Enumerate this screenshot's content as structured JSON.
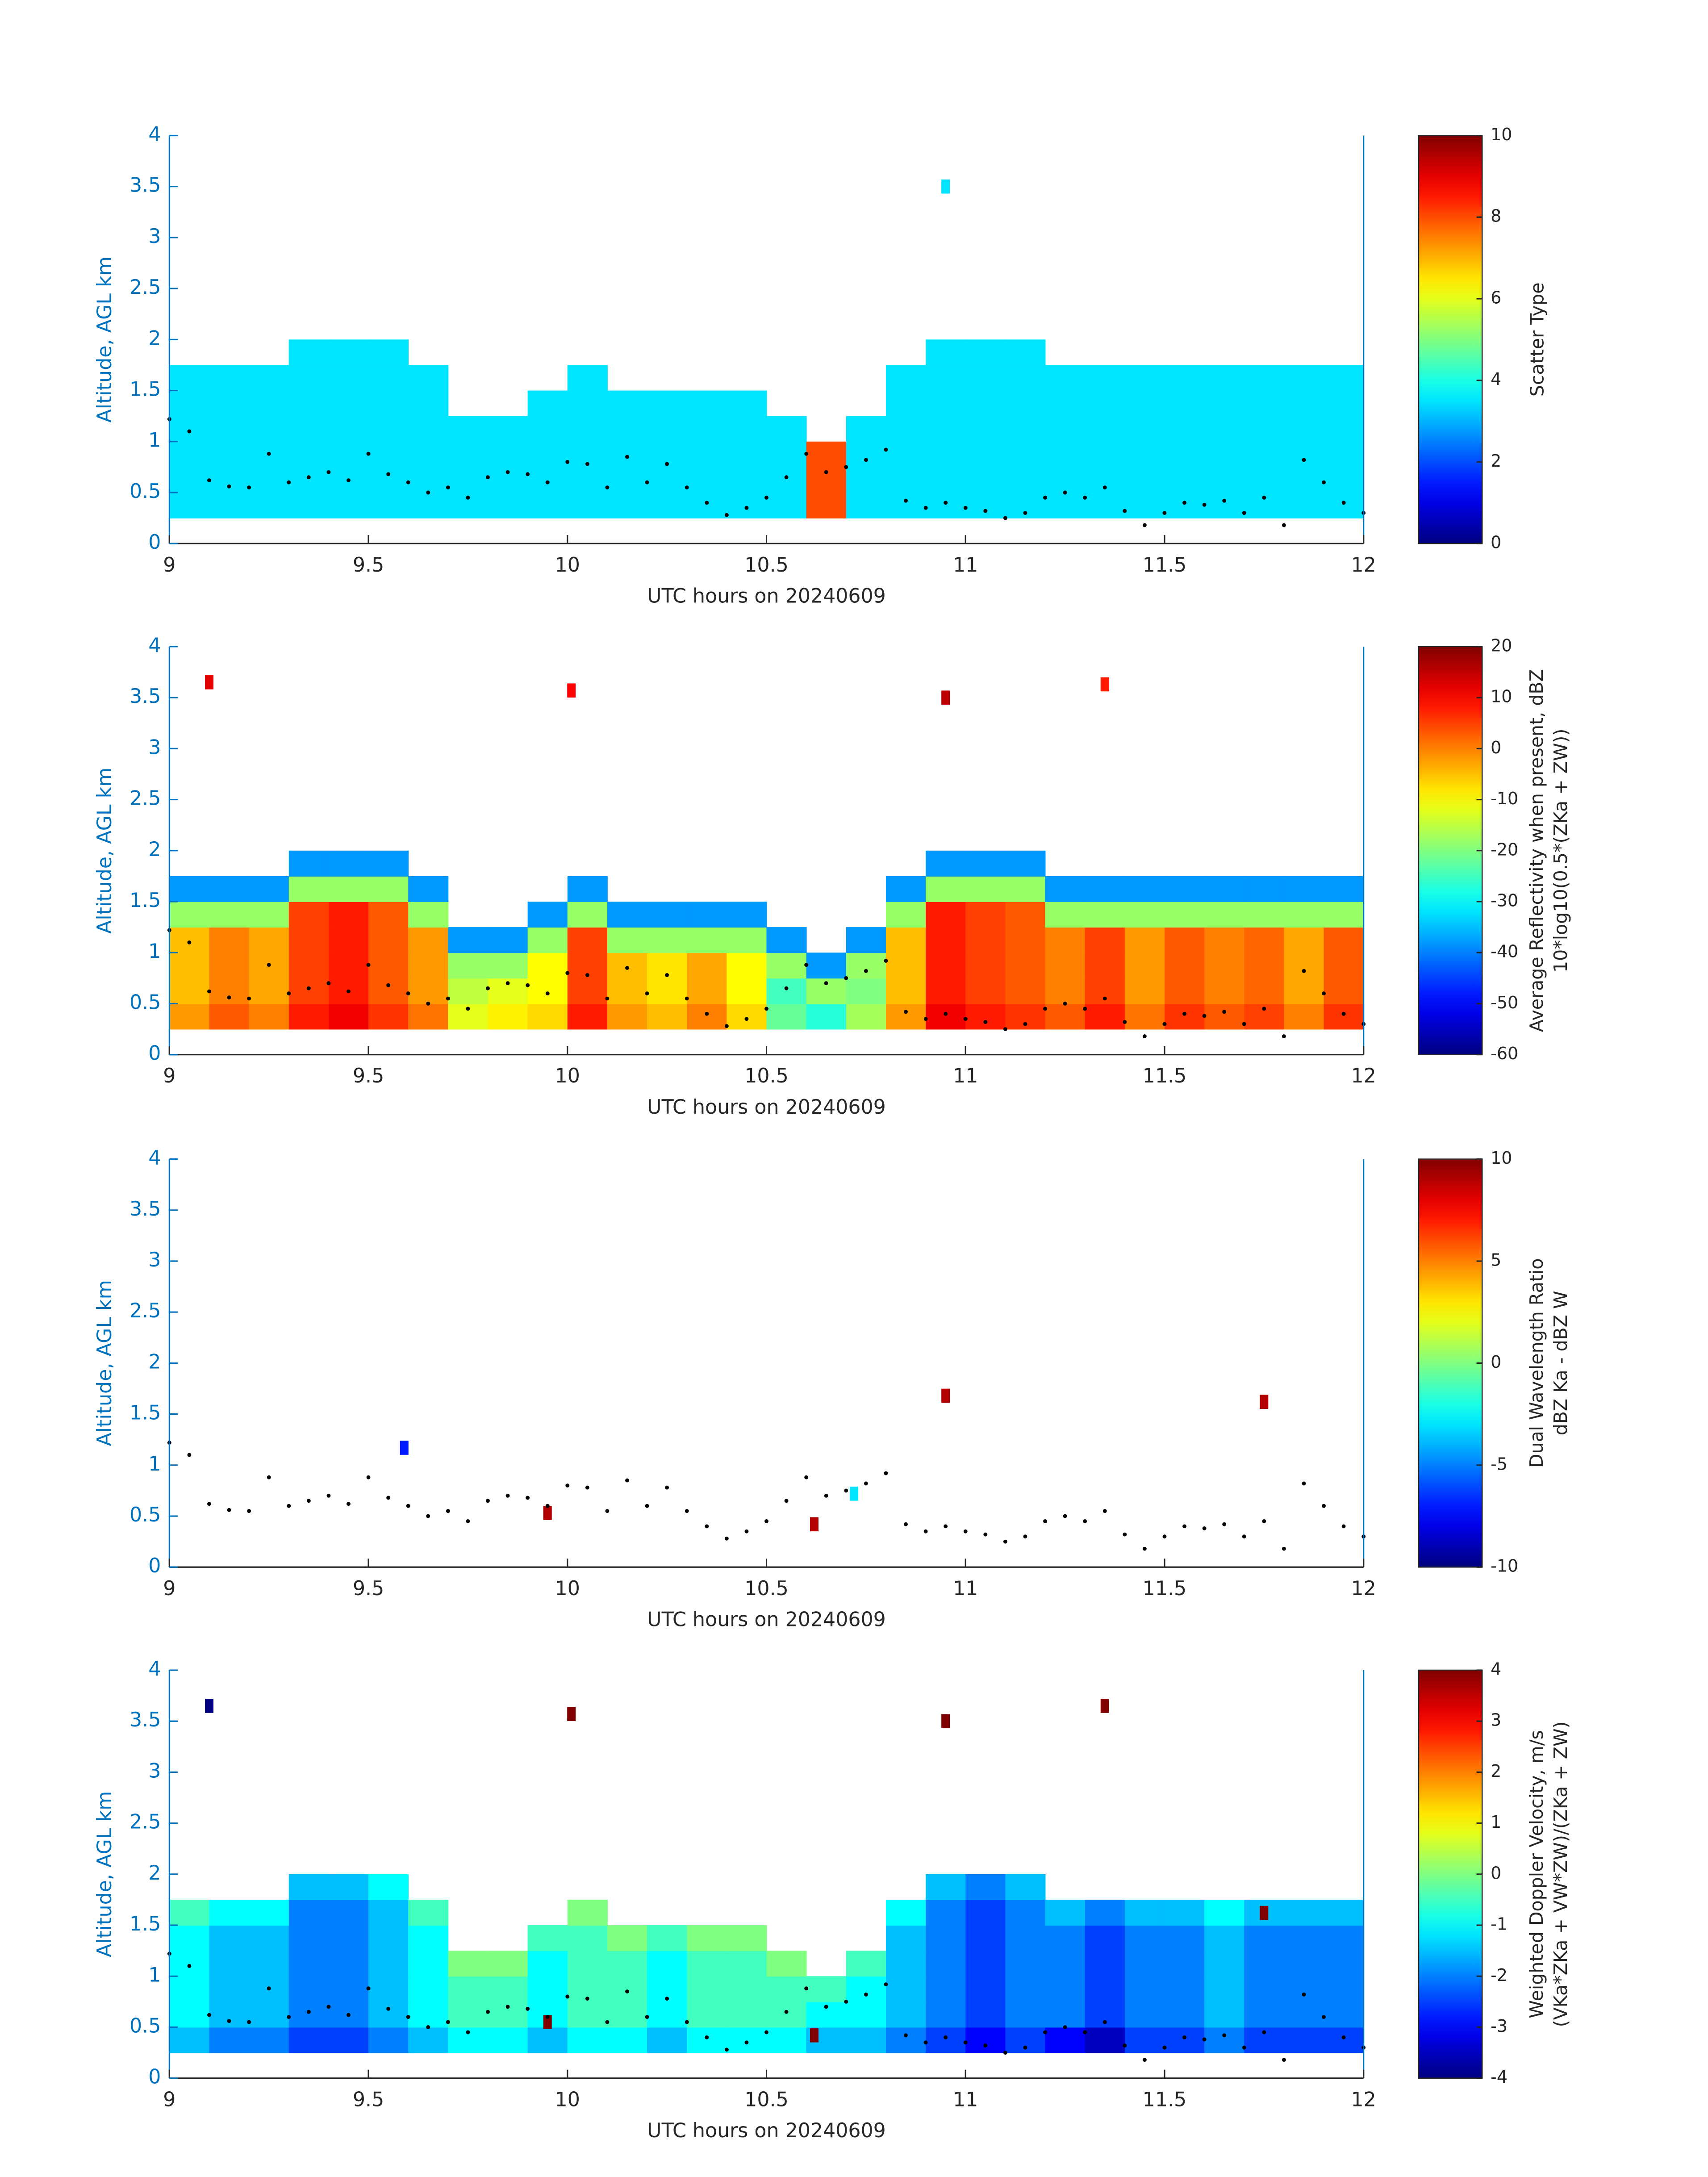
{
  "chart_data": [
    {
      "type": "heatmap",
      "xlabel": "UTC hours on 20240609",
      "ylabel": "Altitude, AGL km",
      "clabel": [
        "Scatter Type"
      ],
      "xlim": [
        9,
        12
      ],
      "ylim": [
        0,
        4
      ],
      "xticks": [
        9,
        9.5,
        10,
        10.5,
        11,
        11.5,
        12
      ],
      "yticks": [
        0,
        0.5,
        1,
        1.5,
        2,
        2.5,
        3,
        3.5,
        4
      ],
      "clim": [
        0,
        10
      ],
      "cticks": [
        0,
        2,
        4,
        6,
        8,
        10
      ],
      "x": [
        9.05,
        9.15,
        9.25,
        9.35,
        9.45,
        9.55,
        9.65,
        9.75,
        9.85,
        9.95,
        10.05,
        10.15,
        10.25,
        10.35,
        10.45,
        10.55,
        10.65,
        10.75,
        10.85,
        10.95,
        11.05,
        11.15,
        11.25,
        11.35,
        11.45,
        11.55,
        11.65,
        11.75,
        11.85,
        11.95
      ],
      "y": [
        0.375,
        0.625,
        0.875,
        1.125,
        1.375,
        1.625,
        1.875
      ],
      "z": [
        [
          3.5,
          3.5,
          3.5,
          3.5,
          3.5,
          3.5,
          3.5,
          3.5,
          3.5,
          3.5,
          3.5,
          3.5,
          3.5,
          3.5,
          3.5,
          3.5,
          8,
          3.5,
          3.5,
          3.5,
          3.5,
          3.5,
          3.5,
          3.5,
          3.5,
          3.5,
          3.5,
          3.5,
          3.5,
          3.5
        ],
        [
          3.5,
          3.5,
          3.5,
          3.5,
          3.5,
          3.5,
          3.5,
          3.5,
          3.5,
          3.5,
          3.5,
          3.5,
          3.5,
          3.5,
          3.5,
          3.5,
          8,
          3.5,
          3.5,
          3.5,
          3.5,
          3.5,
          3.5,
          3.5,
          3.5,
          3.5,
          3.5,
          3.5,
          3.5,
          3.5
        ],
        [
          3.5,
          3.5,
          3.5,
          3.5,
          3.5,
          3.5,
          3.5,
          3.5,
          3.5,
          3.5,
          3.5,
          3.5,
          3.5,
          3.5,
          3.5,
          3.5,
          8,
          3.5,
          3.5,
          3.5,
          3.5,
          3.5,
          3.5,
          3.5,
          3.5,
          3.5,
          3.5,
          3.5,
          3.5,
          3.5
        ],
        [
          3.5,
          3.5,
          3.5,
          3.5,
          3.5,
          3.5,
          3.5,
          3.5,
          3.5,
          3.5,
          3.5,
          3.5,
          3.5,
          3.5,
          3.5,
          3.5,
          null,
          3.5,
          3.5,
          3.5,
          3.5,
          3.5,
          3.5,
          3.5,
          3.5,
          3.5,
          3.5,
          3.5,
          3.5,
          3.5
        ],
        [
          3.5,
          3.5,
          3.5,
          3.5,
          3.5,
          3.5,
          3.5,
          null,
          null,
          3.5,
          3.5,
          3.5,
          3.5,
          3.5,
          3.5,
          null,
          null,
          null,
          3.5,
          3.5,
          3.5,
          3.5,
          3.5,
          3.5,
          3.5,
          3.5,
          3.5,
          3.5,
          3.5,
          3.5
        ],
        [
          3.5,
          3.5,
          3.5,
          3.5,
          3.5,
          3.5,
          3.5,
          null,
          null,
          null,
          3.5,
          null,
          null,
          null,
          null,
          null,
          null,
          null,
          3.5,
          3.5,
          3.5,
          3.5,
          3.5,
          3.5,
          3.5,
          3.5,
          3.5,
          3.5,
          3.5,
          3.5
        ],
        [
          null,
          null,
          null,
          3.5,
          3.5,
          3.5,
          null,
          null,
          null,
          null,
          null,
          null,
          null,
          null,
          null,
          null,
          null,
          null,
          null,
          3.5,
          3.5,
          3.5,
          null,
          null,
          null,
          null,
          null,
          null,
          null,
          null
        ]
      ],
      "cells": {
        "x": [
          10.95
        ],
        "y": [
          3.5
        ],
        "values": [
          3.5
        ]
      },
      "dots": {
        "x": [
          9,
          9.05,
          9.1,
          9.15,
          9.2,
          9.25,
          9.3,
          9.35,
          9.4,
          9.45,
          9.5,
          9.55,
          9.6,
          9.65,
          9.7,
          9.75,
          9.8,
          9.85,
          9.9,
          9.95,
          10,
          10.05,
          10.1,
          10.15,
          10.2,
          10.25,
          10.3,
          10.35,
          10.4,
          10.45,
          10.5,
          10.55,
          10.6,
          10.65,
          10.7,
          10.75,
          10.8,
          10.85,
          10.9,
          10.95,
          11,
          11.05,
          11.1,
          11.15,
          11.2,
          11.25,
          11.3,
          11.35,
          11.4,
          11.45,
          11.5,
          11.55,
          11.6,
          11.65,
          11.7,
          11.75,
          11.8,
          11.85,
          11.9,
          11.95,
          12
        ],
        "y": [
          1.22,
          1.1,
          0.62,
          0.56,
          0.55,
          0.88,
          0.6,
          0.65,
          0.7,
          0.62,
          0.88,
          0.68,
          0.6,
          0.5,
          0.55,
          0.45,
          0.65,
          0.7,
          0.68,
          0.6,
          0.8,
          0.78,
          0.55,
          0.85,
          0.6,
          0.78,
          0.55,
          0.4,
          0.28,
          0.35,
          0.45,
          0.65,
          0.88,
          0.7,
          0.75,
          0.82,
          0.92,
          0.42,
          0.35,
          0.4,
          0.35,
          0.32,
          0.25,
          0.3,
          0.45,
          0.5,
          0.45,
          0.55,
          0.32,
          0.18,
          0.3,
          0.4,
          0.38,
          0.42,
          0.3,
          0.45,
          0.18,
          0.82,
          0.6,
          0.4,
          0.3
        ]
      }
    },
    {
      "type": "heatmap",
      "xlabel": "UTC hours on 20240609",
      "ylabel": "Altitude, AGL km",
      "clabel": [
        "Average Reflectivity when present, dBZ",
        "10*log10(0.5*(ZKa + ZW))"
      ],
      "xlim": [
        9,
        12
      ],
      "ylim": [
        0,
        4
      ],
      "xticks": [
        9,
        9.5,
        10,
        10.5,
        11,
        11.5,
        12
      ],
      "yticks": [
        0,
        0.5,
        1,
        1.5,
        2,
        2.5,
        3,
        3.5,
        4
      ],
      "clim": [
        -60,
        20
      ],
      "cticks": [
        -60,
        -50,
        -40,
        -30,
        -20,
        -10,
        0,
        10,
        20
      ],
      "x": [
        9.05,
        9.15,
        9.25,
        9.35,
        9.45,
        9.55,
        9.65,
        9.75,
        9.85,
        9.95,
        10.05,
        10.15,
        10.25,
        10.35,
        10.45,
        10.55,
        10.65,
        10.75,
        10.85,
        10.95,
        11.05,
        11.15,
        11.25,
        11.35,
        11.45,
        11.55,
        11.65,
        11.75,
        11.85,
        11.95
      ],
      "y": [
        0.375,
        0.625,
        0.875,
        1.125,
        1.375,
        1.625,
        1.875
      ],
      "z": [
        [
          -2,
          3,
          0,
          8,
          11,
          6,
          1,
          -12,
          -9,
          -7,
          8,
          -2,
          -5,
          0,
          -7,
          -22,
          -27,
          -17,
          -2,
          11,
          8,
          6,
          3,
          8,
          1,
          6,
          3,
          5,
          0,
          6
        ],
        [
          -5,
          0,
          -3,
          5,
          8,
          3,
          -2,
          -15,
          -12,
          -10,
          5,
          -5,
          -8,
          -3,
          -10,
          -25,
          -18,
          -20,
          -5,
          8,
          5,
          3,
          0,
          5,
          -2,
          3,
          0,
          2,
          -3,
          3
        ],
        [
          -5,
          0,
          -3,
          5,
          8,
          3,
          -2,
          -18,
          -18,
          -10,
          5,
          -5,
          -8,
          -3,
          -10,
          -18,
          -38,
          -18,
          -5,
          8,
          5,
          3,
          0,
          5,
          -2,
          3,
          0,
          2,
          -3,
          3
        ],
        [
          -5,
          0,
          -3,
          5,
          8,
          3,
          -2,
          -38,
          -38,
          -18,
          5,
          -18,
          -18,
          -18,
          -18,
          -38,
          null,
          -38,
          -5,
          8,
          5,
          3,
          0,
          5,
          -2,
          3,
          0,
          2,
          -3,
          3
        ],
        [
          -18,
          -18,
          -18,
          5,
          8,
          3,
          -18,
          null,
          null,
          -38,
          -18,
          -38,
          -38,
          -38,
          -38,
          null,
          null,
          null,
          -18,
          8,
          5,
          3,
          -18,
          -18,
          -18,
          -18,
          -18,
          -18,
          -18,
          -18
        ],
        [
          -38,
          -38,
          -38,
          -18,
          -18,
          -18,
          -38,
          null,
          null,
          null,
          -38,
          null,
          null,
          null,
          null,
          null,
          null,
          null,
          -38,
          -18,
          -18,
          -18,
          -38,
          -38,
          -38,
          -38,
          -38,
          -38,
          -38,
          -38
        ],
        [
          null,
          null,
          null,
          -38,
          -38,
          -38,
          null,
          null,
          null,
          null,
          null,
          null,
          null,
          null,
          null,
          null,
          null,
          null,
          null,
          -38,
          -38,
          -38,
          null,
          null,
          null,
          null,
          null,
          null,
          null,
          null
        ]
      ],
      "cells": {
        "x": [
          9.1,
          10.01,
          10.95,
          11.35
        ],
        "y": [
          3.65,
          3.57,
          3.5,
          3.63
        ],
        "values": [
          12,
          10,
          15,
          8
        ]
      }
    },
    {
      "type": "heatmap",
      "xlabel": "UTC hours on 20240609",
      "ylabel": "Altitude, AGL km",
      "clabel": [
        "Dual Wavelength Ratio",
        "dBZ Ka - dBZ W"
      ],
      "xlim": [
        9,
        12
      ],
      "ylim": [
        0,
        4
      ],
      "xticks": [
        9,
        9.5,
        10,
        10.5,
        11,
        11.5,
        12
      ],
      "yticks": [
        0,
        0.5,
        1,
        1.5,
        2,
        2.5,
        3,
        3.5,
        4
      ],
      "clim": [
        -10,
        10
      ],
      "cticks": [
        -10,
        -5,
        0,
        5,
        10
      ],
      "cells": {
        "x": [
          9.59,
          10.95,
          11.75,
          9.95,
          10.62,
          10.72
        ],
        "y": [
          1.17,
          1.68,
          1.62,
          0.53,
          0.42,
          0.72
        ],
        "values": [
          -7,
          9,
          9,
          9,
          9,
          -3
        ]
      }
    },
    {
      "type": "heatmap",
      "xlabel": "UTC hours on 20240609",
      "ylabel": "Altitude, AGL km",
      "clabel": [
        "Weighted Doppler Velocity, m/s",
        "(VKa*ZKa + VW*ZW)/(ZKa + ZW)"
      ],
      "xlim": [
        9,
        12
      ],
      "ylim": [
        0,
        4
      ],
      "xticks": [
        9,
        9.5,
        10,
        10.5,
        11,
        11.5,
        12
      ],
      "yticks": [
        0,
        0.5,
        1,
        1.5,
        2,
        2.5,
        3,
        3.5,
        4
      ],
      "clim": [
        -4,
        4
      ],
      "cticks": [
        -4,
        -3,
        -2,
        -1,
        0,
        1,
        2,
        3,
        4
      ],
      "x": [
        9.05,
        9.15,
        9.25,
        9.35,
        9.45,
        9.55,
        9.65,
        9.75,
        9.85,
        9.95,
        10.05,
        10.15,
        10.25,
        10.35,
        10.45,
        10.55,
        10.65,
        10.75,
        10.85,
        10.95,
        11.05,
        11.15,
        11.25,
        11.35,
        11.45,
        11.55,
        11.65,
        11.75,
        11.85,
        11.95
      ],
      "y": [
        0.375,
        0.625,
        0.875,
        1.125,
        1.375,
        1.625,
        1.875
      ],
      "z": [
        [
          -1.5,
          -2,
          -2,
          -2.5,
          -2.5,
          -2,
          -1.5,
          -1,
          -1,
          -1.5,
          -1,
          -1,
          -1.5,
          -1,
          -1,
          -1,
          -1.5,
          -1.5,
          -2,
          -2.5,
          -3,
          -2.5,
          -3,
          -3.5,
          -2.5,
          -2.5,
          -2,
          -2.5,
          -2.5,
          -2.5
        ],
        [
          -1,
          -1.5,
          -1.5,
          -2,
          -2,
          -1.5,
          -1,
          -0.5,
          -0.5,
          -1,
          -0.5,
          -0.5,
          -1,
          -0.5,
          -0.5,
          -0.5,
          -1,
          -1,
          -1.5,
          -2,
          -2.5,
          -2,
          -2,
          -2.5,
          -2,
          -2,
          -1.5,
          -2,
          -2,
          -2
        ],
        [
          -1,
          -1.5,
          -1.5,
          -2,
          -2,
          -1.5,
          -1,
          -0.5,
          -0.5,
          -1,
          -0.5,
          -0.5,
          -1,
          -0.5,
          -0.5,
          -0.5,
          -0.5,
          -1,
          -1.5,
          -2,
          -2.5,
          -2,
          -2,
          -2.5,
          -2,
          -2,
          -1.5,
          -2,
          -2,
          -2
        ],
        [
          -1,
          -1.5,
          -1.5,
          -2,
          -2,
          -1.5,
          -1,
          0,
          0,
          -1,
          -0.5,
          -0.5,
          -1,
          -0.5,
          -0.5,
          0,
          null,
          -0.5,
          -1.5,
          -2,
          -2.5,
          -2,
          -2,
          -2.5,
          -2,
          -2,
          -1.5,
          -2,
          -2,
          -2
        ],
        [
          -1,
          -1.5,
          -1.5,
          -2,
          -2,
          -1.5,
          -1,
          null,
          null,
          -0.5,
          -0.5,
          0,
          -0.5,
          0,
          0,
          null,
          null,
          null,
          -1.5,
          -2,
          -2.5,
          -2,
          -2,
          -2.5,
          -2,
          -2,
          -1.5,
          -2,
          -2,
          -2
        ],
        [
          -0.5,
          -1,
          -1,
          -2,
          -2,
          -1.5,
          -0.5,
          null,
          null,
          null,
          0,
          null,
          null,
          null,
          null,
          null,
          null,
          null,
          -1,
          -2,
          -2.5,
          -2,
          -1.5,
          -2,
          -1.5,
          -1.5,
          -1,
          -1.5,
          -1.5,
          -1.5
        ],
        [
          null,
          null,
          null,
          -1.5,
          -1.5,
          -1,
          null,
          null,
          null,
          null,
          null,
          null,
          null,
          null,
          null,
          null,
          null,
          null,
          null,
          -1.5,
          -2,
          -1.5,
          null,
          null,
          null,
          null,
          null,
          null,
          null,
          null
        ]
      ],
      "cells": {
        "x": [
          9.1,
          10.01,
          10.95,
          11.35,
          9.95,
          10.62,
          11.75
        ],
        "y": [
          3.65,
          3.57,
          3.5,
          3.65,
          0.55,
          0.42,
          1.62
        ],
        "values": [
          -4,
          4,
          4,
          4,
          4,
          4,
          4
        ]
      }
    }
  ]
}
